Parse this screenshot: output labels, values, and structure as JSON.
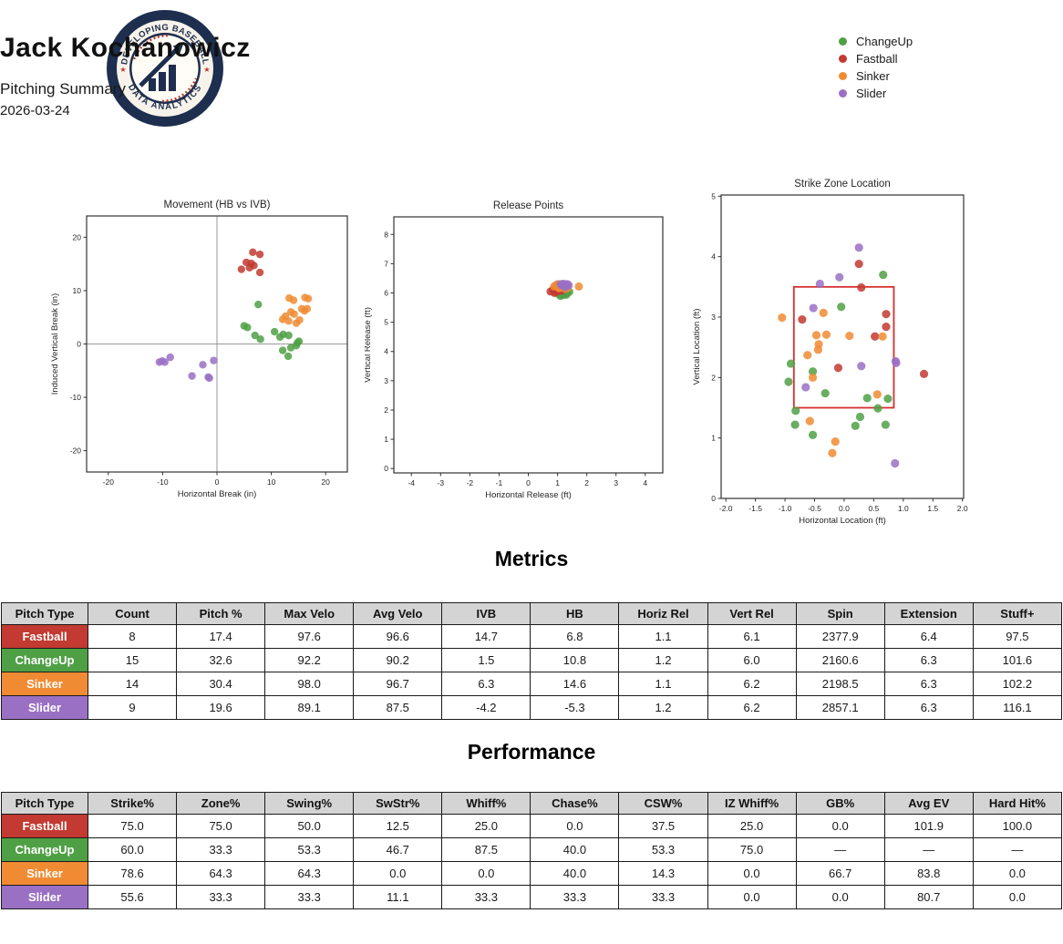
{
  "header": {
    "logo": {
      "top_text": "DEVELOPING BASEBALL",
      "bottom_text": "DATA ANALYTICS"
    },
    "title": "Jack Kochanowicz",
    "subtitle": "Pitching Summary",
    "date": "2026-03-24",
    "legend": [
      "ChangeUp",
      "Fastball",
      "Sinker",
      "Slider"
    ]
  },
  "colors": {
    "ChangeUp": "#4fa045",
    "Fastball": "#c23a31",
    "Sinker": "#f08b33",
    "Slider": "#9a70c4",
    "zone": "#d62f2f",
    "navy": "#1d2e4e",
    "cream": "#f7f3ea",
    "stitch": "#c0392b"
  },
  "sections": {
    "metrics": "Metrics",
    "performance": "Performance"
  },
  "chart_data": [
    {
      "type": "scatter",
      "title": "Movement (HB vs IVB)",
      "xlabel": "Horizontal Break (in)",
      "ylabel": "Induced Vertical Break (in)",
      "xlim": [
        -24,
        24
      ],
      "ylim": [
        -24,
        24
      ],
      "xticks": [
        -20,
        -10,
        0,
        10,
        20
      ],
      "yticks": [
        -20,
        -10,
        0,
        10,
        20
      ],
      "zero_lines": true,
      "series": [
        {
          "name": "ChangeUp",
          "points": [
            [
              7.6,
              7.4
            ],
            [
              5.0,
              3.4
            ],
            [
              5.6,
              3.1
            ],
            [
              7.0,
              1.6
            ],
            [
              8.0,
              0.9
            ],
            [
              10.6,
              2.3
            ],
            [
              11.6,
              1.3
            ],
            [
              12.2,
              1.8
            ],
            [
              13.2,
              1.6
            ],
            [
              12.1,
              -1.2
            ],
            [
              13.1,
              -2.3
            ],
            [
              13.6,
              -0.7
            ],
            [
              14.6,
              -0.3
            ],
            [
              15.1,
              0.5
            ],
            [
              14.8,
              0.2
            ]
          ]
        },
        {
          "name": "Fastball",
          "points": [
            [
              6.6,
              17.2
            ],
            [
              7.9,
              16.8
            ],
            [
              5.4,
              15.3
            ],
            [
              6.3,
              15.1
            ],
            [
              6.8,
              14.7
            ],
            [
              6.0,
              14.3
            ],
            [
              4.5,
              14.0
            ],
            [
              7.9,
              13.4
            ]
          ]
        },
        {
          "name": "Sinker",
          "points": [
            [
              13.3,
              8.6
            ],
            [
              14.1,
              8.2
            ],
            [
              16.2,
              8.7
            ],
            [
              16.8,
              8.5
            ],
            [
              13.6,
              6.0
            ],
            [
              14.2,
              5.6
            ],
            [
              15.6,
              6.6
            ],
            [
              16.6,
              6.6
            ],
            [
              16.1,
              6.2
            ],
            [
              12.1,
              4.6
            ],
            [
              12.6,
              5.2
            ],
            [
              13.2,
              4.3
            ],
            [
              14.6,
              3.9
            ],
            [
              15.2,
              4.5
            ]
          ]
        },
        {
          "name": "Slider",
          "points": [
            [
              -10.6,
              -3.4
            ],
            [
              -10.1,
              -3.2
            ],
            [
              -9.6,
              -3.4
            ],
            [
              -8.6,
              -2.5
            ],
            [
              -4.6,
              -6.0
            ],
            [
              -2.6,
              -3.9
            ],
            [
              -1.6,
              -6.2
            ],
            [
              -1.4,
              -6.4
            ],
            [
              -0.6,
              -3.1
            ]
          ]
        }
      ]
    },
    {
      "type": "scatter",
      "title": "Release Points",
      "xlabel": "Horizontal Release (ft)",
      "ylabel": "Vertical Release (ft)",
      "xlim": [
        -4.6,
        4.6
      ],
      "ylim": [
        -0.15,
        8.6
      ],
      "xticks": [
        -4,
        -3,
        -2,
        -1,
        0,
        1,
        2,
        3,
        4
      ],
      "yticks": [
        0,
        1,
        2,
        3,
        4,
        5,
        6,
        7,
        8
      ],
      "series": [
        {
          "name": "ChangeUp",
          "points": [
            [
              1.0,
              6.02
            ],
            [
              1.05,
              5.96
            ],
            [
              1.1,
              5.9
            ],
            [
              1.14,
              6.0
            ],
            [
              1.2,
              5.94
            ],
            [
              1.25,
              6.0
            ],
            [
              1.3,
              6.04
            ],
            [
              1.1,
              6.06
            ],
            [
              1.2,
              6.05
            ],
            [
              1.04,
              6.06
            ],
            [
              1.16,
              5.93
            ],
            [
              1.26,
              6.06
            ],
            [
              1.34,
              6.0
            ],
            [
              1.3,
              5.94
            ],
            [
              1.4,
              6.04
            ]
          ]
        },
        {
          "name": "Fastball",
          "points": [
            [
              0.76,
              6.05
            ],
            [
              0.84,
              6.1
            ],
            [
              0.93,
              6.04
            ],
            [
              0.99,
              6.1
            ],
            [
              1.04,
              6.07
            ],
            [
              1.1,
              6.12
            ],
            [
              0.9,
              6.0
            ],
            [
              1.14,
              6.08
            ]
          ]
        },
        {
          "name": "Sinker",
          "points": [
            [
              0.88,
              6.22
            ],
            [
              0.95,
              6.27
            ],
            [
              1.0,
              6.3
            ],
            [
              1.03,
              6.2
            ],
            [
              1.08,
              6.26
            ],
            [
              1.14,
              6.3
            ],
            [
              1.18,
              6.22
            ],
            [
              1.24,
              6.26
            ],
            [
              1.3,
              6.2
            ],
            [
              1.34,
              6.16
            ],
            [
              1.73,
              6.22
            ],
            [
              1.05,
              6.16
            ],
            [
              1.15,
              6.19
            ],
            [
              1.26,
              6.14
            ]
          ]
        },
        {
          "name": "Slider",
          "points": [
            [
              1.1,
              6.3
            ],
            [
              1.16,
              6.26
            ],
            [
              1.2,
              6.31
            ],
            [
              1.26,
              6.3
            ],
            [
              1.3,
              6.25
            ],
            [
              1.2,
              6.24
            ],
            [
              1.34,
              6.3
            ],
            [
              1.26,
              6.2
            ],
            [
              1.38,
              6.26
            ]
          ]
        }
      ]
    },
    {
      "type": "scatter",
      "title": "Strike Zone Location",
      "xlabel": "Horizontal Location (ft)",
      "ylabel": "Vertical Location (ft)",
      "xlim": [
        -2.08,
        2.02
      ],
      "ylim": [
        0,
        5.02
      ],
      "xticks": [
        -2.0,
        -1.5,
        -1.0,
        -0.5,
        0.0,
        0.5,
        1.0,
        1.5,
        2.0
      ],
      "xtick_labels": [
        "-2.0",
        "-1.5",
        "-1.0",
        "-0.5",
        "0.0",
        "0.5",
        "1.0",
        "1.5",
        "2.0"
      ],
      "yticks": [
        0,
        1,
        2,
        3,
        4,
        5
      ],
      "zone_rect": {
        "x": [
          -0.85,
          0.84
        ],
        "y": [
          1.5,
          3.5
        ]
      },
      "series": [
        {
          "name": "ChangeUp",
          "points": [
            [
              0.66,
              3.7
            ],
            [
              -0.05,
              3.17
            ],
            [
              -0.9,
              2.23
            ],
            [
              -0.53,
              2.1
            ],
            [
              -0.94,
              1.93
            ],
            [
              -0.32,
              1.74
            ],
            [
              0.39,
              1.66
            ],
            [
              0.74,
              1.65
            ],
            [
              0.57,
              1.49
            ],
            [
              -0.82,
              1.45
            ],
            [
              -0.83,
              1.22
            ],
            [
              0.27,
              1.35
            ],
            [
              0.19,
              1.2
            ],
            [
              0.7,
              1.22
            ],
            [
              -0.53,
              1.05
            ]
          ]
        },
        {
          "name": "Fastball",
          "points": [
            [
              0.25,
              3.88
            ],
            [
              0.29,
              3.49
            ],
            [
              -0.71,
              2.96
            ],
            [
              0.71,
              3.05
            ],
            [
              0.71,
              2.84
            ],
            [
              0.52,
              2.68
            ],
            [
              -0.1,
              2.16
            ],
            [
              1.35,
              2.06
            ]
          ]
        },
        {
          "name": "Sinker",
          "points": [
            [
              -1.05,
              2.99
            ],
            [
              -0.35,
              3.07
            ],
            [
              -0.47,
              2.7
            ],
            [
              -0.3,
              2.71
            ],
            [
              0.09,
              2.69
            ],
            [
              0.65,
              2.68
            ],
            [
              -0.62,
              2.37
            ],
            [
              -0.44,
              2.46
            ],
            [
              -0.53,
              2.0
            ],
            [
              0.56,
              1.72
            ],
            [
              -0.58,
              1.28
            ],
            [
              -0.15,
              0.94
            ],
            [
              -0.2,
              0.75
            ],
            [
              -0.43,
              2.55
            ]
          ]
        },
        {
          "name": "Slider",
          "points": [
            [
              0.25,
              4.15
            ],
            [
              -0.08,
              3.66
            ],
            [
              -0.41,
              3.55
            ],
            [
              -0.52,
              3.15
            ],
            [
              -0.65,
              1.84
            ],
            [
              0.29,
              2.19
            ],
            [
              0.87,
              2.27
            ],
            [
              0.86,
              0.58
            ],
            [
              0.88,
              2.24
            ]
          ]
        }
      ]
    }
  ],
  "metrics_table": {
    "headers": [
      "Pitch Type",
      "Count",
      "Pitch %",
      "Max Velo",
      "Avg Velo",
      "IVB",
      "HB",
      "Horiz Rel",
      "Vert Rel",
      "Spin",
      "Extension",
      "Stuff+"
    ],
    "rows": [
      {
        "pitch": "Fastball",
        "values": [
          "8",
          "17.4",
          "97.6",
          "96.6",
          "14.7",
          "6.8",
          "1.1",
          "6.1",
          "2377.9",
          "6.4",
          "97.5"
        ]
      },
      {
        "pitch": "ChangeUp",
        "values": [
          "15",
          "32.6",
          "92.2",
          "90.2",
          "1.5",
          "10.8",
          "1.2",
          "6.0",
          "2160.6",
          "6.3",
          "101.6"
        ]
      },
      {
        "pitch": "Sinker",
        "values": [
          "14",
          "30.4",
          "98.0",
          "96.7",
          "6.3",
          "14.6",
          "1.1",
          "6.2",
          "2198.5",
          "6.3",
          "102.2"
        ]
      },
      {
        "pitch": "Slider",
        "values": [
          "9",
          "19.6",
          "89.1",
          "87.5",
          "-4.2",
          "-5.3",
          "1.2",
          "6.2",
          "2857.1",
          "6.3",
          "116.1"
        ]
      }
    ]
  },
  "performance_table": {
    "headers": [
      "Pitch Type",
      "Strike%",
      "Zone%",
      "Swing%",
      "SwStr%",
      "Whiff%",
      "Chase%",
      "CSW%",
      "IZ Whiff%",
      "GB%",
      "Avg EV",
      "Hard Hit%"
    ],
    "rows": [
      {
        "pitch": "Fastball",
        "values": [
          "75.0",
          "75.0",
          "50.0",
          "12.5",
          "25.0",
          "0.0",
          "37.5",
          "25.0",
          "0.0",
          "101.9",
          "100.0"
        ]
      },
      {
        "pitch": "ChangeUp",
        "values": [
          "60.0",
          "33.3",
          "53.3",
          "46.7",
          "87.5",
          "40.0",
          "53.3",
          "75.0",
          "—",
          "—",
          "—"
        ]
      },
      {
        "pitch": "Sinker",
        "values": [
          "78.6",
          "64.3",
          "64.3",
          "0.0",
          "0.0",
          "40.0",
          "14.3",
          "0.0",
          "66.7",
          "83.8",
          "0.0"
        ]
      },
      {
        "pitch": "Slider",
        "values": [
          "55.6",
          "33.3",
          "33.3",
          "11.1",
          "33.3",
          "33.3",
          "33.3",
          "0.0",
          "0.0",
          "80.7",
          "0.0"
        ]
      }
    ]
  }
}
